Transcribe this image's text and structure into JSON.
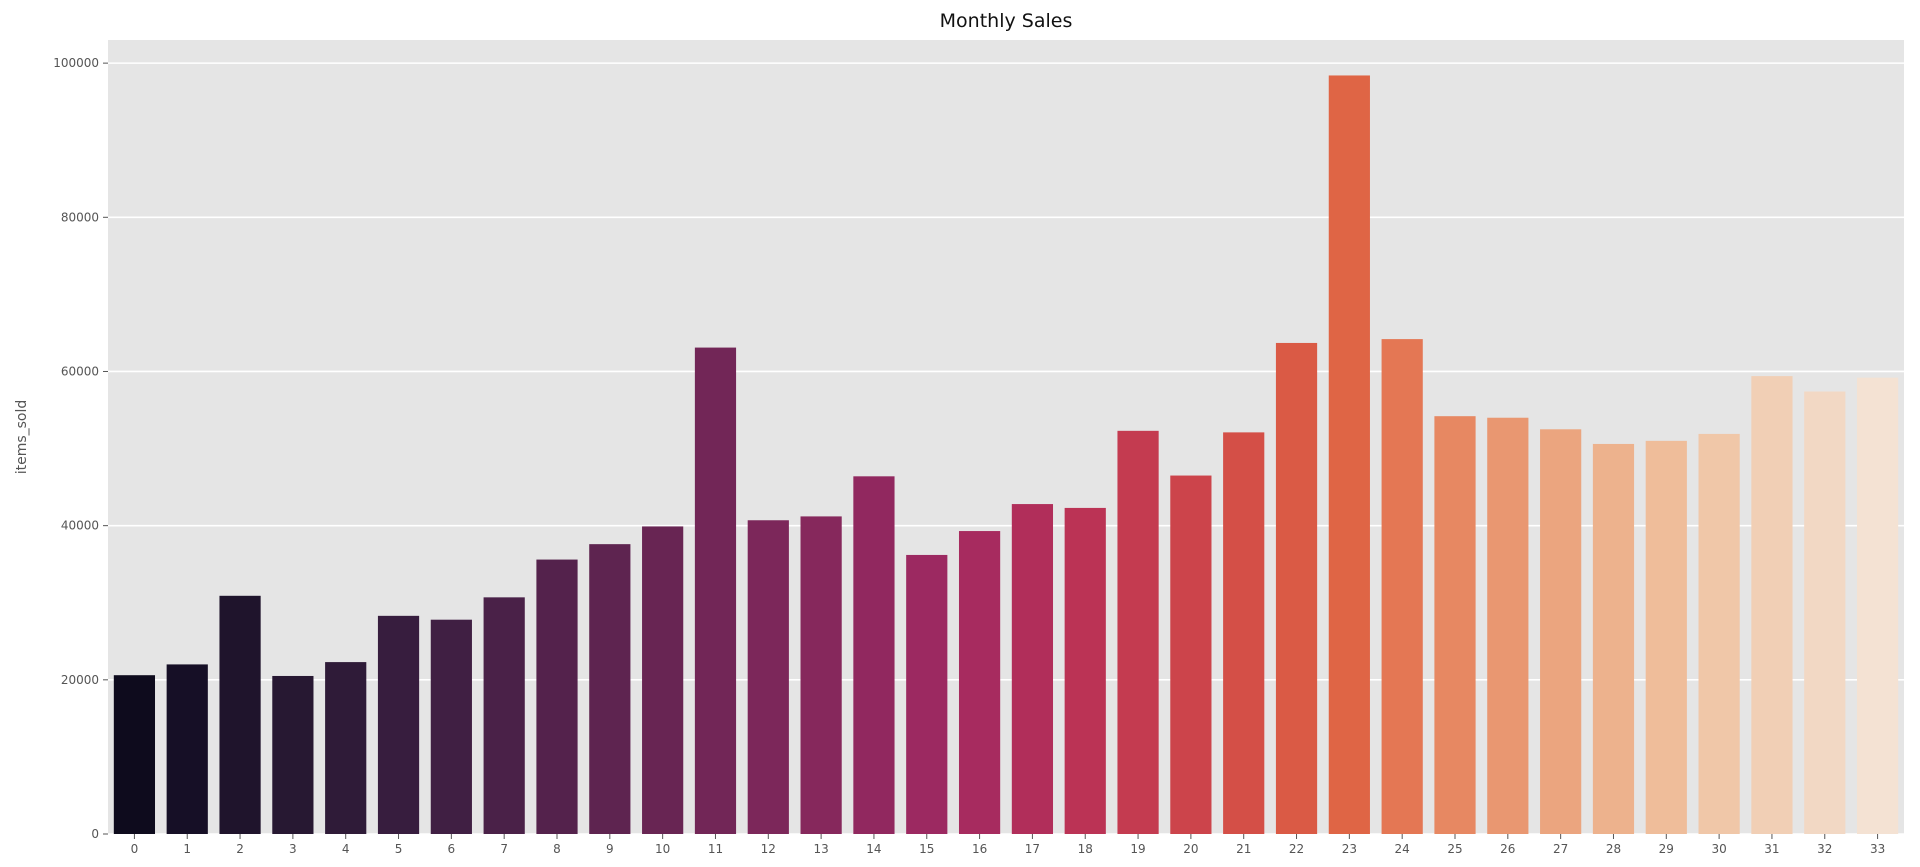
{
  "chart_data": {
    "type": "bar",
    "title": "Monthly Sales",
    "xlabel": "",
    "ylabel": "items_sold",
    "categories": [
      "0",
      "1",
      "2",
      "3",
      "4",
      "5",
      "6",
      "7",
      "8",
      "9",
      "10",
      "11",
      "12",
      "13",
      "14",
      "15",
      "16",
      "17",
      "18",
      "19",
      "20",
      "21",
      "22",
      "23",
      "24",
      "25",
      "26",
      "27",
      "28",
      "29",
      "30",
      "31",
      "32",
      "33"
    ],
    "values": [
      20600,
      22000,
      30900,
      20500,
      22300,
      28300,
      27800,
      30700,
      35600,
      37600,
      39900,
      63100,
      40700,
      41200,
      46400,
      36200,
      39300,
      42800,
      42300,
      52300,
      46500,
      52100,
      63700,
      98400,
      64200,
      54200,
      54000,
      52500,
      50600,
      51000,
      51900,
      59400,
      57400,
      59200
    ],
    "ylim": [
      0,
      103000
    ],
    "yticks": [
      0,
      20000,
      40000,
      60000,
      80000,
      100000
    ],
    "ytick_labels": [
      "0",
      "20000",
      "40000",
      "60000",
      "80000",
      "100000"
    ],
    "grid": true,
    "background": "#e5e5e5",
    "grid_color": "#ffffff",
    "colors": [
      "#0e0b1d",
      "#160f26",
      "#1f142c",
      "#271832",
      "#2f1b38",
      "#371d3e",
      "#401f43",
      "#4a2148",
      "#54224c",
      "#5e2450",
      "#682553",
      "#722657",
      "#7c275a",
      "#86285c",
      "#91285f",
      "#9c2961",
      "#a72b5f",
      "#b12e5a",
      "#bb3355",
      "#c43b50",
      "#cc444b",
      "#d44f47",
      "#da5a45",
      "#df6545",
      "#e47754",
      "#e78862",
      "#e99771",
      "#eba57f",
      "#edb28d",
      "#efbd9a",
      "#f0c7a8",
      "#f1cfb5",
      "#f2d8c4",
      "#f4e2d3"
    ]
  }
}
